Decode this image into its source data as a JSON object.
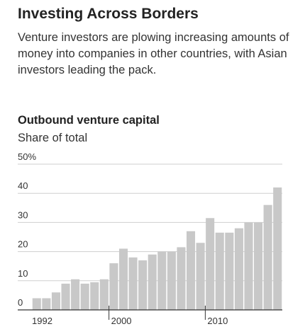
{
  "chart_data": {
    "type": "bar",
    "title": "Investing Across Borders",
    "subtitle": "Venture investors are plowing increasing amounts of money into companies in other countries, with Asian investors leading the pack.",
    "chart_title": "Outbound venture capital",
    "y_label": "Share of total",
    "categories": [
      "1992",
      null,
      null,
      null,
      null,
      null,
      null,
      null,
      "2000",
      null,
      null,
      null,
      null,
      null,
      null,
      null,
      null,
      null,
      "2010",
      null,
      null,
      null,
      null,
      null,
      null,
      null
    ],
    "values": [
      4,
      4,
      6,
      9,
      10.5,
      9,
      9.5,
      10.5,
      16,
      21,
      18,
      17,
      19,
      20,
      20,
      21.5,
      27,
      23,
      31.5,
      26.5,
      26.5,
      28,
      30,
      30,
      36,
      42
    ],
    "color": "#c8c8c8",
    "ylim": [
      0,
      50
    ],
    "yticks": [
      0,
      10,
      20,
      30,
      40,
      {
        "value": 50,
        "label": "50%"
      }
    ],
    "grid": true
  }
}
